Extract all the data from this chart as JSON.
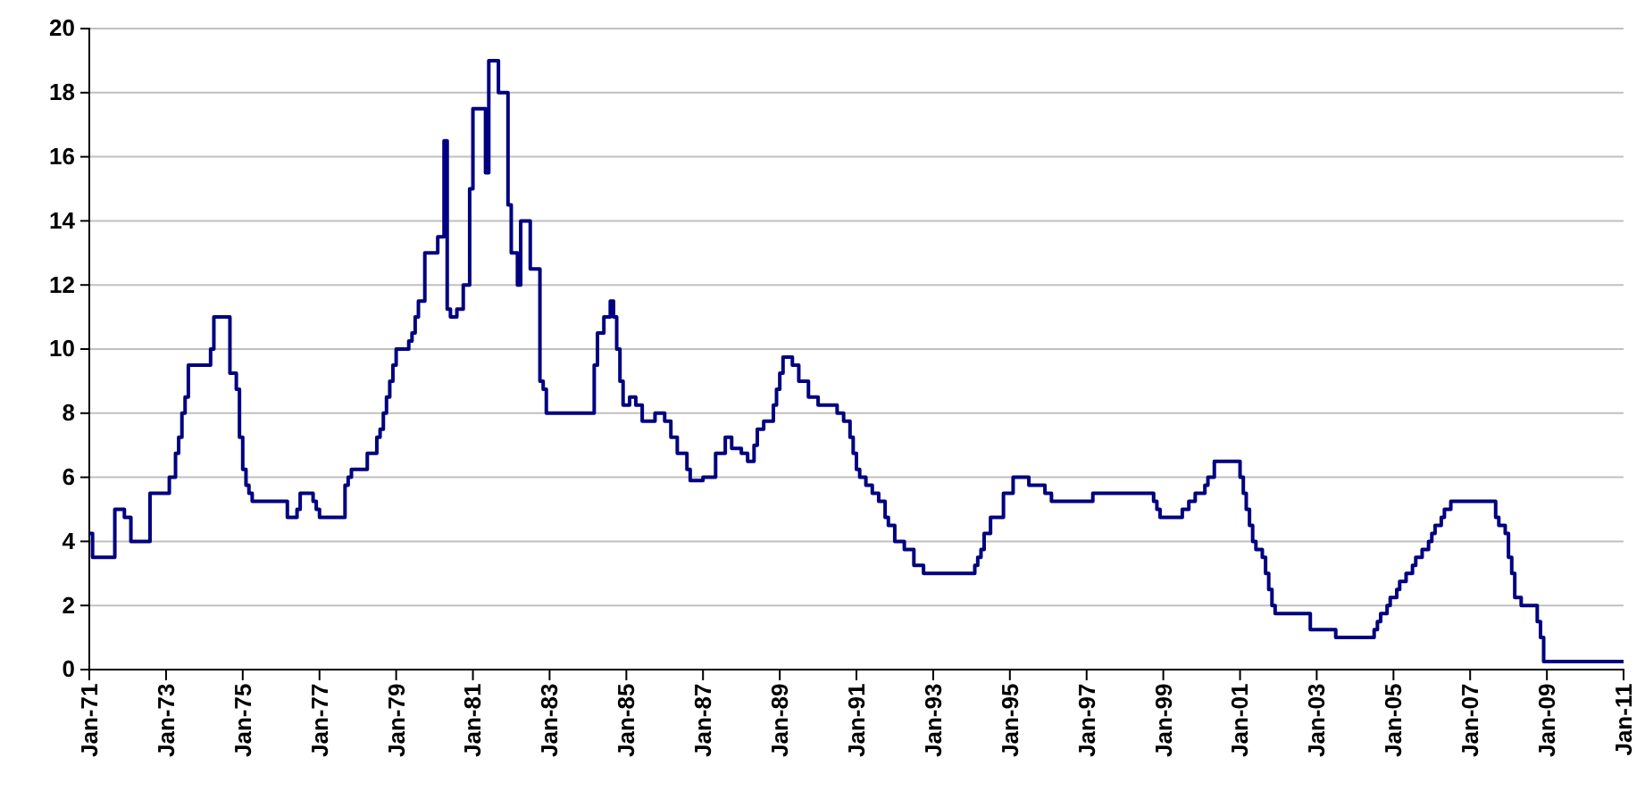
{
  "chart_data": {
    "type": "step",
    "series": [
      {
        "color": "#000080",
        "x": [
          "1971-01",
          "1971-02",
          "1971-09",
          "1971-12",
          "1972-02",
          "1972-08",
          "1973-02",
          "1973-04",
          "1973-05",
          "1973-06",
          "1973-07",
          "1973-08",
          "1974-03",
          "1974-04",
          "1974-05",
          "1974-09",
          "1974-11",
          "1974-12",
          "1975-01",
          "1975-02",
          "1975-03",
          "1975-04",
          "1976-03",
          "1976-06",
          "1976-07",
          "1976-11",
          "1976-12",
          "1977-01",
          "1977-09",
          "1977-10",
          "1977-11",
          "1978-04",
          "1978-07",
          "1978-08",
          "1978-09",
          "1978-10",
          "1978-11",
          "1978-12",
          "1979-01",
          "1979-05",
          "1979-06",
          "1979-07",
          "1979-08",
          "1979-10",
          "1980-02",
          "1980-04",
          "1980-05",
          "1980-06",
          "1980-08",
          "1980-10",
          "1980-12",
          "1981-01",
          "1981-05",
          "1981-06",
          "1981-09",
          "1981-12",
          "1982-01",
          "1982-03",
          "1982-04",
          "1982-07",
          "1982-10",
          "1982-11",
          "1982-12",
          "1984-03",
          "1984-04",
          "1984-06",
          "1984-08",
          "1984-09",
          "1984-10",
          "1984-11",
          "1984-12",
          "1985-02",
          "1985-04",
          "1985-06",
          "1985-10",
          "1986-01",
          "1986-03",
          "1986-05",
          "1986-08",
          "1986-09",
          "1987-01",
          "1987-05",
          "1987-08",
          "1987-10",
          "1988-01",
          "1988-03",
          "1988-05",
          "1988-06",
          "1988-08",
          "1988-11",
          "1988-12",
          "1989-01",
          "1989-02",
          "1989-05",
          "1989-07",
          "1989-10",
          "1990-01",
          "1990-07",
          "1990-09",
          "1990-11",
          "1990-12",
          "1991-01",
          "1991-02",
          "1991-04",
          "1991-06",
          "1991-08",
          "1991-10",
          "1991-11",
          "1992-01",
          "1992-04",
          "1992-07",
          "1992-10",
          "1994-02",
          "1994-03",
          "1994-04",
          "1994-05",
          "1994-07",
          "1994-11",
          "1995-02",
          "1995-07",
          "1995-12",
          "1996-02",
          "1997-03",
          "1998-10",
          "1998-11",
          "1998-12",
          "1999-07",
          "1999-09",
          "1999-11",
          "2000-02",
          "2000-03",
          "2000-05",
          "2001-01",
          "2001-02",
          "2001-03",
          "2001-04",
          "2001-05",
          "2001-06",
          "2001-08",
          "2001-09",
          "2001-10",
          "2001-11",
          "2001-12",
          "2002-11",
          "2003-07",
          "2004-07",
          "2004-08",
          "2004-09",
          "2004-11",
          "2004-12",
          "2005-02",
          "2005-03",
          "2005-05",
          "2005-07",
          "2005-08",
          "2005-10",
          "2005-12",
          "2006-01",
          "2006-02",
          "2006-04",
          "2006-05",
          "2006-07",
          "2007-09",
          "2007-10",
          "2007-12",
          "2008-01",
          "2008-02",
          "2008-03",
          "2008-05",
          "2008-10",
          "2008-11",
          "2008-12",
          "2011-01"
        ],
        "values": [
          4.25,
          3.5,
          5.0,
          4.75,
          4.0,
          5.5,
          6.0,
          6.75,
          7.25,
          8.0,
          8.5,
          9.5,
          10.0,
          11.0,
          11.0,
          9.25,
          8.75,
          7.25,
          6.25,
          5.75,
          5.5,
          5.25,
          4.75,
          5.0,
          5.5,
          5.25,
          5.0,
          4.75,
          5.75,
          6.0,
          6.25,
          6.75,
          7.25,
          7.5,
          8.0,
          8.5,
          9.0,
          9.5,
          10.0,
          10.25,
          10.5,
          11.0,
          11.5,
          13.0,
          13.5,
          16.5,
          11.25,
          11.0,
          11.25,
          12.0,
          15.0,
          17.5,
          15.5,
          19.0,
          18.0,
          14.5,
          13.0,
          12.0,
          14.0,
          12.5,
          9.0,
          8.75,
          8.0,
          9.5,
          10.5,
          11.0,
          11.5,
          11.0,
          10.0,
          9.0,
          8.25,
          8.5,
          8.25,
          7.75,
          8.0,
          7.75,
          7.25,
          6.75,
          6.25,
          5.9,
          6.0,
          6.75,
          7.25,
          6.9,
          6.75,
          6.5,
          7.0,
          7.5,
          7.75,
          8.25,
          8.75,
          9.25,
          9.75,
          9.5,
          9.0,
          8.5,
          8.25,
          8.0,
          7.75,
          7.25,
          6.75,
          6.25,
          6.0,
          5.75,
          5.5,
          5.25,
          4.75,
          4.5,
          4.0,
          3.75,
          3.25,
          3.0,
          3.25,
          3.5,
          3.75,
          4.25,
          4.75,
          5.5,
          6.0,
          5.75,
          5.5,
          5.25,
          5.5,
          5.25,
          5.0,
          4.75,
          5.0,
          5.25,
          5.5,
          5.75,
          6.0,
          6.5,
          6.0,
          5.5,
          5.0,
          4.5,
          4.0,
          3.75,
          3.5,
          3.0,
          2.5,
          2.0,
          1.75,
          1.25,
          1.0,
          1.25,
          1.5,
          1.75,
          2.0,
          2.25,
          2.5,
          2.75,
          3.0,
          3.25,
          3.5,
          3.75,
          4.0,
          4.25,
          4.5,
          4.75,
          5.0,
          5.25,
          4.75,
          4.5,
          4.25,
          3.5,
          3.0,
          2.25,
          2.0,
          1.5,
          1.0,
          0.25,
          0.25
        ]
      }
    ],
    "xlim": [
      "1971-01",
      "2011-01"
    ],
    "xticks": [
      {
        "value": "1971-01",
        "label": "Jan-71"
      },
      {
        "value": "1973-01",
        "label": "Jan-73"
      },
      {
        "value": "1975-01",
        "label": "Jan-75"
      },
      {
        "value": "1977-01",
        "label": "Jan-77"
      },
      {
        "value": "1979-01",
        "label": "Jan-79"
      },
      {
        "value": "1981-01",
        "label": "Jan-81"
      },
      {
        "value": "1983-01",
        "label": "Jan-83"
      },
      {
        "value": "1985-01",
        "label": "Jan-85"
      },
      {
        "value": "1987-01",
        "label": "Jan-87"
      },
      {
        "value": "1989-01",
        "label": "Jan-89"
      },
      {
        "value": "1991-01",
        "label": "Jan-91"
      },
      {
        "value": "1993-01",
        "label": "Jan-93"
      },
      {
        "value": "1995-01",
        "label": "Jan-95"
      },
      {
        "value": "1997-01",
        "label": "Jan-97"
      },
      {
        "value": "1999-01",
        "label": "Jan-99"
      },
      {
        "value": "2001-01",
        "label": "Jan-01"
      },
      {
        "value": "2003-01",
        "label": "Jan-03"
      },
      {
        "value": "2005-01",
        "label": "Jan-05"
      },
      {
        "value": "2007-01",
        "label": "Jan-07"
      },
      {
        "value": "2009-01",
        "label": "Jan-09"
      },
      {
        "value": "2011-01",
        "label": "Jan-11"
      }
    ],
    "ylim": [
      0,
      20
    ],
    "yticks": [
      0,
      2,
      4,
      6,
      8,
      10,
      12,
      14,
      16,
      18,
      20
    ],
    "grid": "y"
  }
}
